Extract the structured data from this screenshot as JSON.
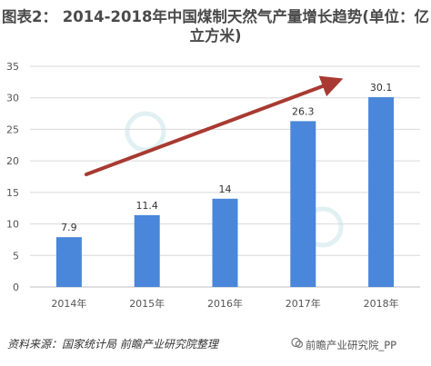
{
  "title": {
    "line1": "图表2：  2014-2018年中国煤制天然气产量增长趋势(单位：亿",
    "line2": "立方米)"
  },
  "source": "资料来源：国家统计局 前瞻产业研究院整理",
  "brand": "前瞻产业研究院_PP",
  "colors": {
    "bar": "#4a86d9",
    "arrow": "#a83a32",
    "grid": "#d9d9d9",
    "axis": "#bfbfbf"
  },
  "chart_data": {
    "type": "bar",
    "categories": [
      "2014年",
      "2015年",
      "2016年",
      "2017年",
      "2018年"
    ],
    "values": [
      7.9,
      11.4,
      14,
      26.3,
      30.1
    ],
    "data_labels": [
      "7.9",
      "11.4",
      "14",
      "26.3",
      "30.1"
    ],
    "title": "2014-2018年中国煤制天然气产量增长趋势(单位：亿立方米)",
    "ylim": [
      0,
      35
    ],
    "yticks": [
      0,
      5,
      10,
      15,
      20,
      25,
      30,
      35
    ],
    "grid": true,
    "legend": "none"
  }
}
